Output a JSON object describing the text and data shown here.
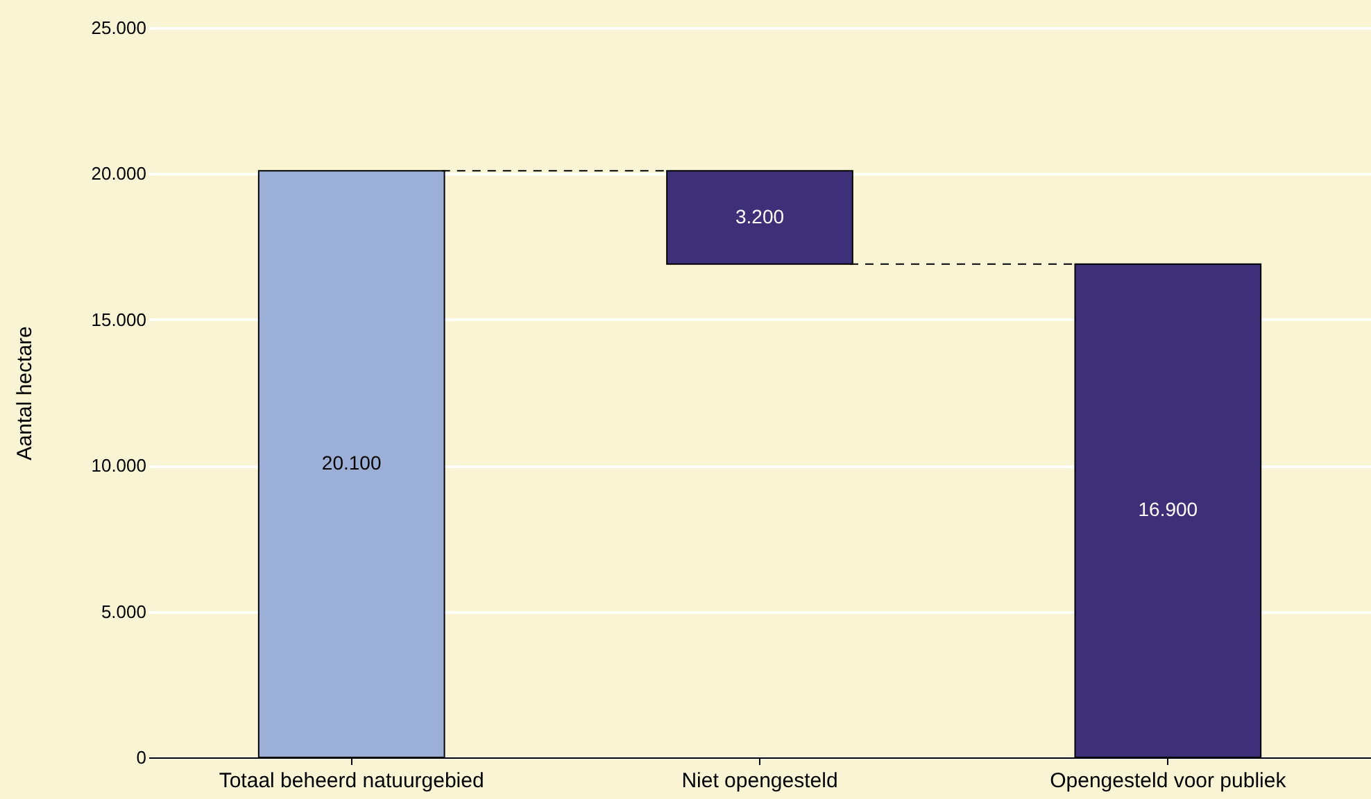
{
  "chart_data": {
    "type": "bar",
    "ylabel": "Aantal hectare",
    "categories": [
      "Totaal beheerd natuurgebied",
      "Niet opengesteld",
      "Opengesteld voor publiek"
    ],
    "values": [
      20100,
      3200,
      16900
    ],
    "base": [
      0,
      16900,
      0
    ],
    "colors": [
      "#9bafd7",
      "#3d2f78",
      "#3d2f78"
    ],
    "value_labels": [
      "20.100",
      "3.200",
      "16.900"
    ],
    "ylim": [
      0,
      25000
    ],
    "yticks": [
      {
        "value": 0,
        "label": "0"
      },
      {
        "value": 5000,
        "label": "5.000"
      },
      {
        "value": 10000,
        "label": "10.000"
      },
      {
        "value": 15000,
        "label": "15.000"
      },
      {
        "value": 20000,
        "label": "20.000"
      },
      {
        "value": 25000,
        "label": "25.000"
      }
    ],
    "grid": "y"
  }
}
